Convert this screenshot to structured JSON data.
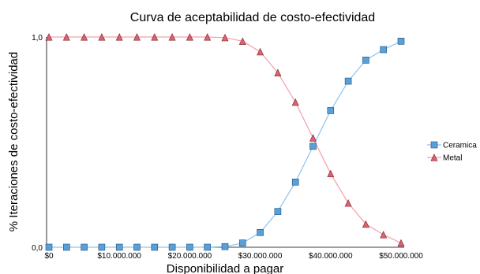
{
  "chart_data": {
    "type": "line",
    "title": "Curva de aceptabilidad de costo-efectividad",
    "xlabel": "Disponibilidad a pagar",
    "ylabel": "% Iteraciones de costo-efectividad",
    "xlim": [
      0,
      50000000
    ],
    "ylim": [
      0,
      1
    ],
    "x_ticks": [
      0,
      10000000,
      20000000,
      30000000,
      40000000,
      50000000
    ],
    "x_tick_labels": [
      "$0",
      "$10.000.000",
      "$20.000.000",
      "$30.000.000",
      "$40.000.000",
      "$50.000.000"
    ],
    "y_ticks": [
      0,
      1
    ],
    "y_tick_labels": [
      "0,0",
      "1,0"
    ],
    "grid": false,
    "legend_position": "right",
    "x": [
      0,
      2500000,
      5000000,
      7500000,
      10000000,
      12500000,
      15000000,
      17500000,
      20000000,
      22500000,
      25000000,
      27500000,
      30000000,
      32500000,
      35000000,
      37500000,
      40000000,
      42500000,
      45000000,
      47500000,
      50000000
    ],
    "series": [
      {
        "name": "Ceramica",
        "marker": "square",
        "color": "#5aa0d8",
        "line_color": "#8fc3ea",
        "values": [
          0,
          0,
          0,
          0,
          0,
          0,
          0,
          0,
          0,
          0,
          0.003,
          0.02,
          0.07,
          0.17,
          0.31,
          0.48,
          0.65,
          0.79,
          0.89,
          0.94,
          0.98
        ]
      },
      {
        "name": "Metal",
        "marker": "triangle",
        "color": "#e06070",
        "line_color": "#f2a0aa",
        "values": [
          1,
          1,
          1,
          1,
          1,
          1,
          1,
          1,
          1,
          1,
          0.997,
          0.98,
          0.93,
          0.83,
          0.69,
          0.52,
          0.35,
          0.21,
          0.11,
          0.06,
          0.02
        ]
      }
    ]
  }
}
